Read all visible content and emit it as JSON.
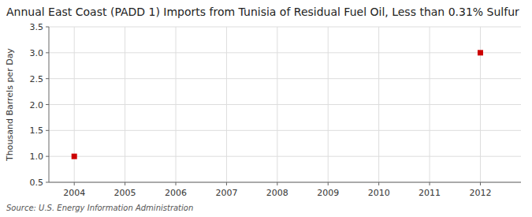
{
  "chart_data": {
    "type": "scatter",
    "title": "Annual East Coast (PADD 1) Imports from Tunisia of Residual Fuel Oil, Less than 0.31% Sulfur",
    "y_label": "Thousand Barrels per Day",
    "annotations": [
      "Source: U.S. Energy Information Administration"
    ],
    "x": [
      2004,
      2012
    ],
    "values": [
      1.0,
      3.0
    ],
    "color": "#cc0000",
    "marker": "square",
    "xlim": [
      2003.5,
      2012.8
    ],
    "ylim": [
      0.5,
      3.5
    ],
    "xticks": [
      2004,
      2005,
      2006,
      2007,
      2008,
      2009,
      2010,
      2011,
      2012
    ],
    "yticks": [
      0.5,
      {
        "value": 1.0,
        "label": "1.0"
      },
      1.5,
      {
        "value": 2.0,
        "label": "2.0"
      },
      2.5,
      {
        "value": 3.0,
        "label": "3.0"
      },
      3.5
    ],
    "grid": true
  }
}
